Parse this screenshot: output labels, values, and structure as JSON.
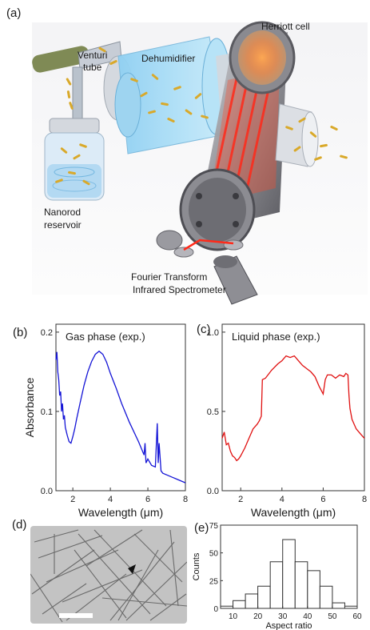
{
  "panels": {
    "a": {
      "label": "(a)",
      "labels": {
        "venturi": [
          "Venturi",
          "tube"
        ],
        "dehumidifier": "Dehumidifier",
        "herriott": "Herriott cell",
        "reservoir": [
          "Nanorod",
          "reservoir"
        ],
        "ftir": [
          "Fourier Transform",
          "Infrared Spectrometer"
        ]
      }
    },
    "b": {
      "label": "(b)"
    },
    "c": {
      "label": "(c)"
    },
    "d": {
      "label": "(d)"
    },
    "e": {
      "label": "(e)"
    }
  },
  "colors": {
    "gas": "#1515d6",
    "liquid": "#e01010",
    "laser": "#ff2a1a",
    "rod": "#d9a92a"
  },
  "chart_data": [
    {
      "id": "b",
      "type": "line",
      "title": "Gas phase (exp.)",
      "xlabel": "Wavelength (μm)",
      "ylabel": "Absorbance",
      "xlim": [
        1.1,
        8
      ],
      "ylim": [
        0,
        0.21
      ],
      "xticks": [
        "2",
        "4",
        "6",
        "8"
      ],
      "yticks": [
        "0.0",
        "0.1",
        "0.2"
      ],
      "series": [
        {
          "color": "#1515d6",
          "x": [
            1.1,
            1.15,
            1.2,
            1.25,
            1.3,
            1.35,
            1.4,
            1.45,
            1.5,
            1.55,
            1.6,
            1.7,
            1.8,
            1.9,
            2.0,
            2.1,
            2.2,
            2.4,
            2.6,
            2.8,
            3.0,
            3.2,
            3.4,
            3.6,
            3.8,
            4.0,
            4.3,
            4.6,
            5.0,
            5.5,
            5.8,
            5.85,
            5.9,
            6.0,
            6.2,
            6.4,
            6.5,
            6.55,
            6.6,
            6.7,
            6.8,
            7.0,
            7.3,
            7.6,
            8.0
          ],
          "y": [
            0.165,
            0.175,
            0.15,
            0.14,
            0.12,
            0.125,
            0.1,
            0.11,
            0.09,
            0.095,
            0.08,
            0.07,
            0.062,
            0.06,
            0.068,
            0.078,
            0.09,
            0.112,
            0.133,
            0.15,
            0.163,
            0.172,
            0.176,
            0.172,
            0.162,
            0.148,
            0.13,
            0.11,
            0.087,
            0.062,
            0.045,
            0.06,
            0.035,
            0.04,
            0.032,
            0.03,
            0.085,
            0.035,
            0.06,
            0.025,
            0.022,
            0.02,
            0.017,
            0.014,
            0.01
          ]
        }
      ]
    },
    {
      "id": "c",
      "type": "line",
      "title": "Liquid phase (exp.)",
      "xlabel": "Wavelength (μm)",
      "ylabel": "",
      "xlim": [
        1.1,
        8
      ],
      "ylim": [
        0,
        1.05
      ],
      "xticks": [
        "2",
        "4",
        "6",
        "8"
      ],
      "yticks": [
        "0.0",
        "0.5",
        "1.0"
      ],
      "series": [
        {
          "color": "#e01010",
          "x": [
            1.1,
            1.2,
            1.3,
            1.4,
            1.5,
            1.6,
            1.7,
            1.8,
            1.9,
            2.0,
            2.2,
            2.4,
            2.6,
            2.8,
            2.9,
            3.0,
            3.05,
            3.2,
            3.5,
            3.8,
            4.0,
            4.2,
            4.4,
            4.6,
            4.8,
            5.0,
            5.2,
            5.4,
            5.6,
            5.8,
            6.0,
            6.1,
            6.2,
            6.4,
            6.6,
            6.8,
            7.0,
            7.1,
            7.2,
            7.25,
            7.3,
            7.4,
            7.6,
            7.8,
            8.0
          ],
          "y": [
            0.33,
            0.37,
            0.29,
            0.3,
            0.25,
            0.22,
            0.21,
            0.19,
            0.2,
            0.22,
            0.27,
            0.33,
            0.39,
            0.42,
            0.44,
            0.47,
            0.7,
            0.71,
            0.76,
            0.8,
            0.82,
            0.85,
            0.84,
            0.85,
            0.82,
            0.79,
            0.77,
            0.75,
            0.72,
            0.66,
            0.61,
            0.7,
            0.73,
            0.73,
            0.71,
            0.73,
            0.72,
            0.74,
            0.73,
            0.6,
            0.52,
            0.45,
            0.39,
            0.36,
            0.33
          ]
        }
      ]
    },
    {
      "id": "e",
      "type": "bar",
      "title": "",
      "xlabel": "Aspect ratio",
      "ylabel": "Counts",
      "xlim": [
        5,
        60
      ],
      "ylim": [
        0,
        75
      ],
      "xticks": [
        "10",
        "20",
        "30",
        "40",
        "50",
        "60"
      ],
      "yticks": [
        "0",
        "25",
        "50",
        "75"
      ],
      "bin_edges": [
        5,
        10,
        15,
        20,
        25,
        30,
        35,
        40,
        45,
        50,
        55,
        60
      ],
      "values": [
        2,
        7,
        13,
        20,
        42,
        62,
        42,
        34,
        20,
        5,
        2
      ]
    }
  ]
}
